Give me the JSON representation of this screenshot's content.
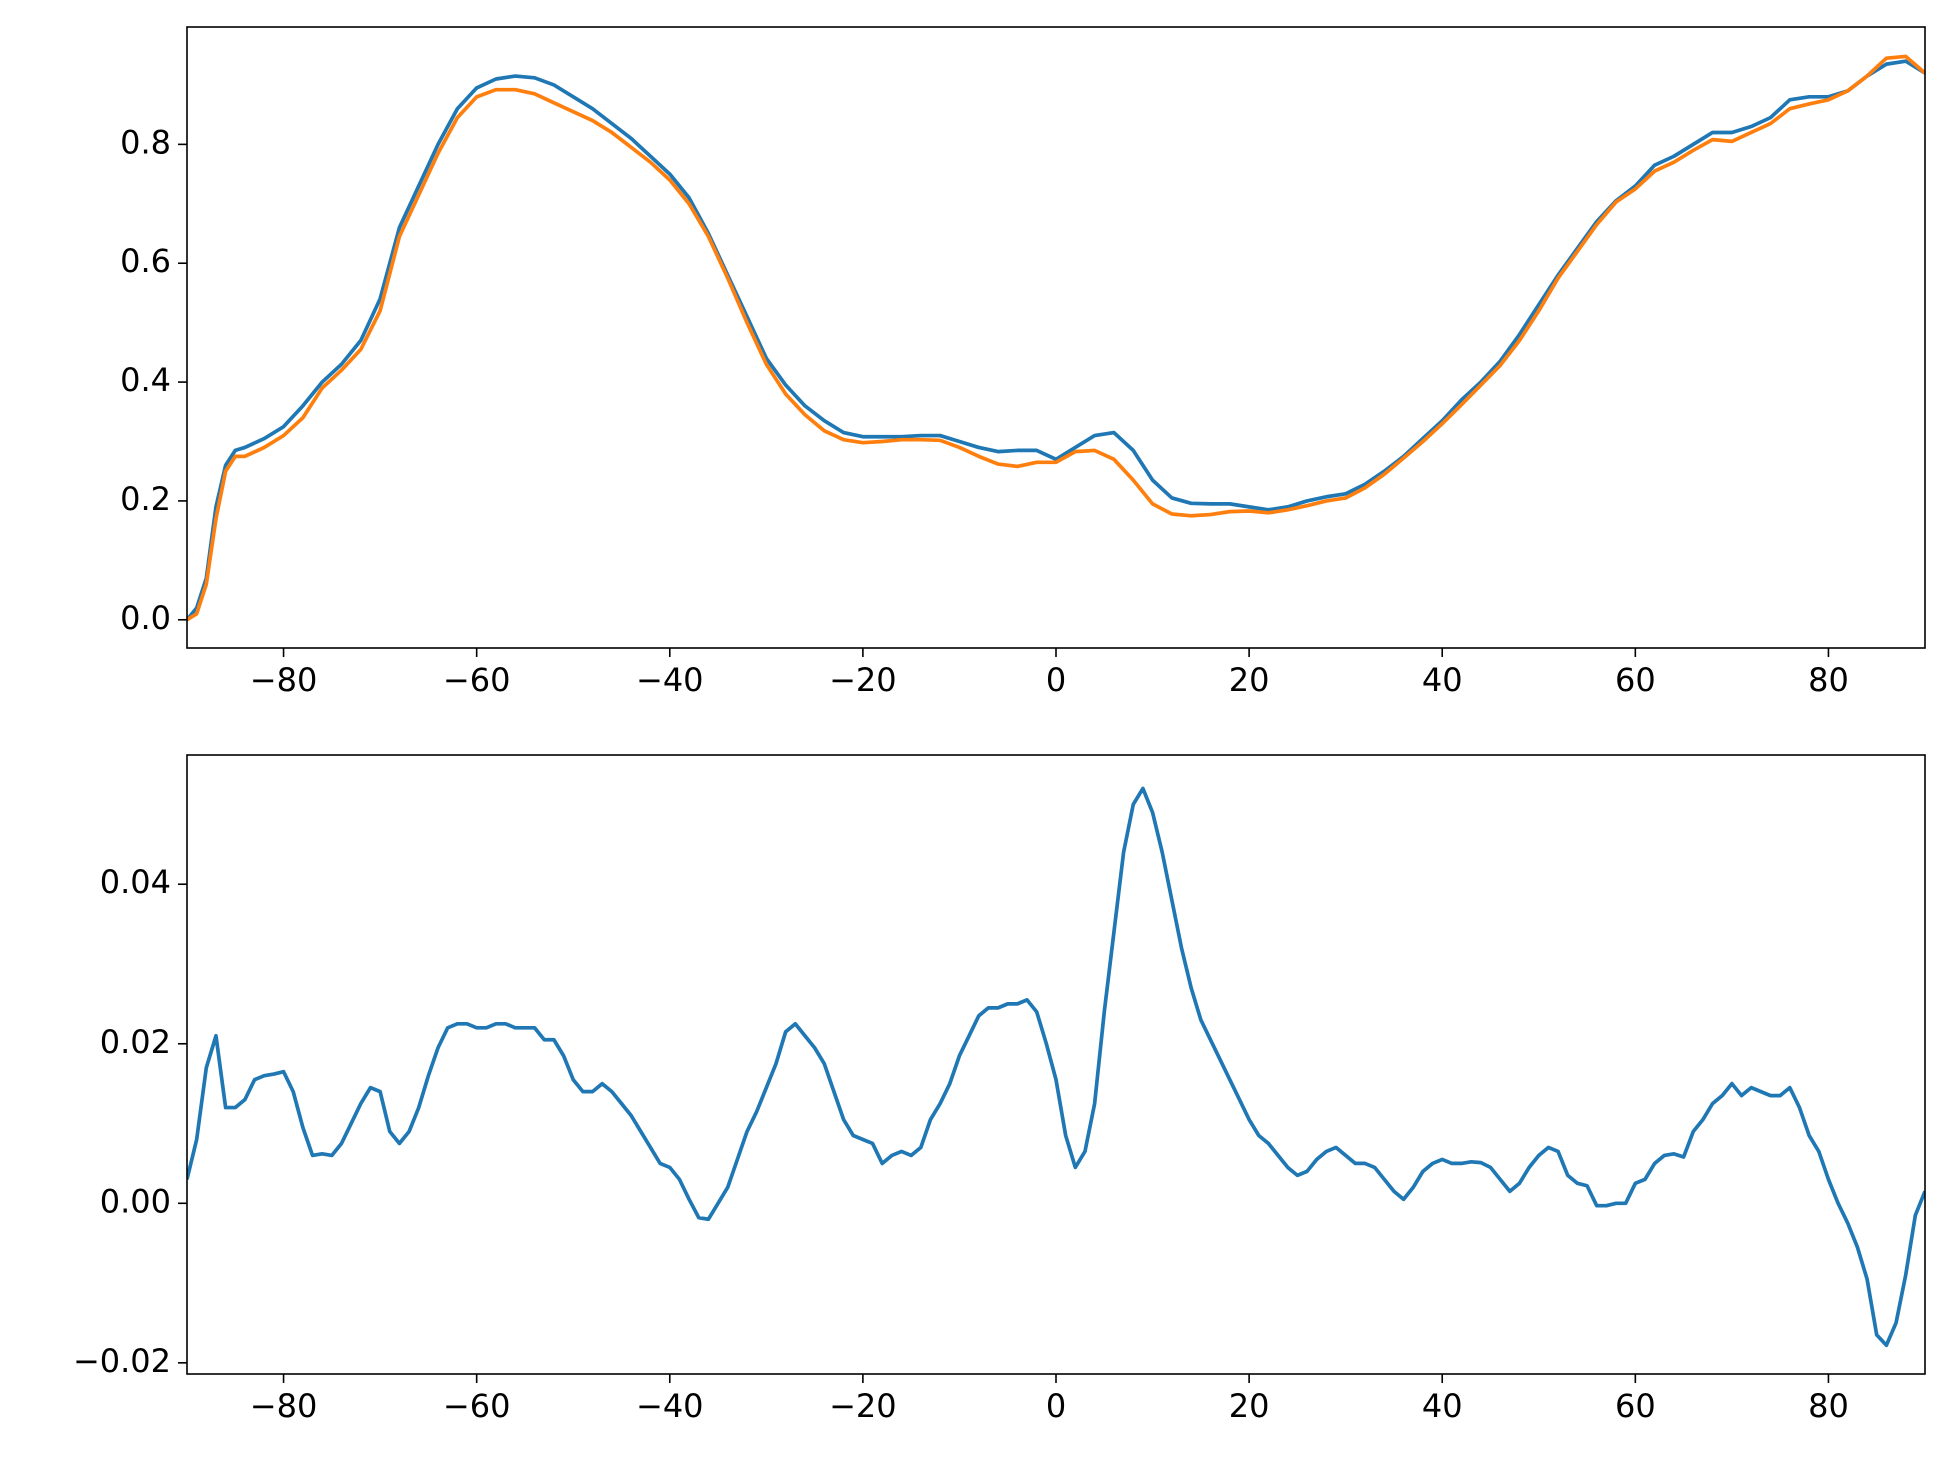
{
  "chart_data": [
    {
      "type": "line",
      "x": [
        -90,
        -89,
        -88,
        -87,
        -86,
        -85,
        -84,
        -82,
        -80,
        -78,
        -76,
        -74,
        -72,
        -70,
        -68,
        -66,
        -64,
        -62,
        -60,
        -58,
        -56,
        -54,
        -52,
        -50,
        -48,
        -46,
        -44,
        -42,
        -40,
        -38,
        -36,
        -34,
        -32,
        -30,
        -28,
        -26,
        -24,
        -22,
        -20,
        -18,
        -16,
        -14,
        -12,
        -10,
        -8,
        -6,
        -4,
        -2,
        0,
        2,
        4,
        6,
        8,
        10,
        12,
        14,
        16,
        18,
        20,
        22,
        24,
        26,
        28,
        30,
        32,
        34,
        36,
        38,
        40,
        42,
        44,
        46,
        48,
        50,
        52,
        54,
        56,
        58,
        60,
        62,
        64,
        66,
        68,
        70,
        72,
        74,
        76,
        78,
        80,
        82,
        84,
        86,
        88,
        90
      ],
      "series": [
        {
          "color": "#1f77b4",
          "values": [
            0.0,
            0.02,
            0.07,
            0.19,
            0.26,
            0.285,
            0.29,
            0.305,
            0.325,
            0.36,
            0.4,
            0.43,
            0.47,
            0.54,
            0.66,
            0.73,
            0.8,
            0.86,
            0.895,
            0.91,
            0.915,
            0.912,
            0.9,
            0.88,
            0.86,
            0.835,
            0.81,
            0.78,
            0.75,
            0.71,
            0.65,
            0.58,
            0.51,
            0.44,
            0.395,
            0.36,
            0.335,
            0.315,
            0.308,
            0.308,
            0.308,
            0.31,
            0.31,
            0.3,
            0.29,
            0.283,
            0.285,
            0.285,
            0.27,
            0.29,
            0.31,
            0.315,
            0.285,
            0.235,
            0.205,
            0.196,
            0.195,
            0.195,
            0.19,
            0.185,
            0.19,
            0.2,
            0.207,
            0.212,
            0.228,
            0.25,
            0.275,
            0.305,
            0.335,
            0.37,
            0.4,
            0.435,
            0.48,
            0.53,
            0.58,
            0.625,
            0.67,
            0.705,
            0.73,
            0.765,
            0.78,
            0.8,
            0.82,
            0.82,
            0.83,
            0.845,
            0.875,
            0.88,
            0.88,
            0.89,
            0.915,
            0.935,
            0.94,
            0.92
          ]
        },
        {
          "color": "#ff7f0e",
          "values": [
            0.0,
            0.01,
            0.06,
            0.17,
            0.25,
            0.275,
            0.275,
            0.29,
            0.31,
            0.34,
            0.39,
            0.42,
            0.455,
            0.52,
            0.645,
            0.715,
            0.785,
            0.845,
            0.88,
            0.892,
            0.892,
            0.885,
            0.87,
            0.855,
            0.84,
            0.82,
            0.795,
            0.77,
            0.74,
            0.7,
            0.645,
            0.575,
            0.5,
            0.43,
            0.38,
            0.345,
            0.318,
            0.303,
            0.298,
            0.3,
            0.303,
            0.303,
            0.302,
            0.29,
            0.275,
            0.262,
            0.258,
            0.265,
            0.265,
            0.283,
            0.285,
            0.27,
            0.235,
            0.195,
            0.178,
            0.175,
            0.177,
            0.182,
            0.183,
            0.18,
            0.185,
            0.192,
            0.2,
            0.205,
            0.222,
            0.245,
            0.272,
            0.3,
            0.33,
            0.362,
            0.395,
            0.428,
            0.47,
            0.52,
            0.575,
            0.62,
            0.665,
            0.703,
            0.725,
            0.755,
            0.77,
            0.79,
            0.808,
            0.805,
            0.82,
            0.835,
            0.86,
            0.868,
            0.875,
            0.89,
            0.915,
            0.945,
            0.948,
            0.92
          ]
        }
      ],
      "xlim": [
        -90,
        90
      ],
      "xticks": [
        {
          "value": -80,
          "label": "−80"
        },
        {
          "value": -60,
          "label": "−60"
        },
        {
          "value": -40,
          "label": "−40"
        },
        {
          "value": -20,
          "label": "−20"
        },
        0,
        20,
        40,
        60,
        80
      ],
      "ylim": [
        -0.0475,
        0.9975
      ],
      "yticks": [
        {
          "value": 0,
          "label": "0.0"
        },
        0.2,
        0.4,
        0.6,
        0.8
      ]
    },
    {
      "type": "line",
      "x": [
        -90,
        -89,
        -88,
        -87,
        -86,
        -85,
        -84,
        -83,
        -82,
        -81,
        -80,
        -79,
        -78,
        -77,
        -76,
        -75,
        -74,
        -73,
        -72,
        -71,
        -70,
        -69,
        -68,
        -67,
        -66,
        -65,
        -64,
        -63,
        -62,
        -61,
        -60,
        -59,
        -58,
        -57,
        -56,
        -55,
        -54,
        -53,
        -52,
        -51,
        -50,
        -49,
        -48,
        -47,
        -46,
        -45,
        -44,
        -43,
        -42,
        -41,
        -40,
        -39,
        -38,
        -37,
        -36,
        -35,
        -34,
        -33,
        -32,
        -31,
        -30,
        -29,
        -28,
        -27,
        -26,
        -25,
        -24,
        -23,
        -22,
        -21,
        -20,
        -19,
        -18,
        -17,
        -16,
        -15,
        -14,
        -13,
        -12,
        -11,
        -10,
        -9,
        -8,
        -7,
        -6,
        -5,
        -4,
        -3,
        -2,
        -1,
        0,
        1,
        2,
        3,
        4,
        5,
        6,
        7,
        8,
        9,
        10,
        11,
        12,
        13,
        14,
        15,
        16,
        17,
        18,
        19,
        20,
        21,
        22,
        23,
        24,
        25,
        26,
        27,
        28,
        29,
        30,
        31,
        32,
        33,
        34,
        35,
        36,
        37,
        38,
        39,
        40,
        41,
        42,
        43,
        44,
        45,
        46,
        47,
        48,
        49,
        50,
        51,
        52,
        53,
        54,
        55,
        56,
        57,
        58,
        59,
        60,
        61,
        62,
        63,
        64,
        65,
        66,
        67,
        68,
        69,
        70,
        71,
        72,
        73,
        74,
        75,
        76,
        77,
        78,
        79,
        80,
        81,
        82,
        83,
        84,
        85,
        86,
        87,
        88,
        89,
        90
      ],
      "series": [
        {
          "color": "#1f77b4",
          "values": [
            0.003,
            0.008,
            0.017,
            0.021,
            0.012,
            0.012,
            0.013,
            0.0155,
            0.016,
            0.0162,
            0.0165,
            0.014,
            0.0095,
            0.006,
            0.0062,
            0.006,
            0.0075,
            0.01,
            0.0125,
            0.0145,
            0.014,
            0.009,
            0.0075,
            0.009,
            0.012,
            0.016,
            0.0195,
            0.022,
            0.0225,
            0.0225,
            0.022,
            0.022,
            0.0225,
            0.0225,
            0.022,
            0.022,
            0.022,
            0.0205,
            0.0205,
            0.0185,
            0.0155,
            0.014,
            0.014,
            0.015,
            0.014,
            0.0125,
            0.011,
            0.009,
            0.007,
            0.005,
            0.0045,
            0.003,
            0.0005,
            -0.0018,
            -0.002,
            0,
            0.002,
            0.0055,
            0.009,
            0.0115,
            0.0145,
            0.0175,
            0.0215,
            0.0225,
            0.021,
            0.0195,
            0.0175,
            0.014,
            0.0105,
            0.0085,
            0.008,
            0.0075,
            0.005,
            0.006,
            0.0065,
            0.006,
            0.007,
            0.0105,
            0.0125,
            0.015,
            0.0185,
            0.021,
            0.0235,
            0.0245,
            0.0245,
            0.025,
            0.025,
            0.0255,
            0.024,
            0.02,
            0.0155,
            0.0085,
            0.0045,
            0.0065,
            0.0125,
            0.024,
            0.034,
            0.044,
            0.05,
            0.052,
            0.049,
            0.044,
            0.038,
            0.032,
            0.027,
            0.023,
            0.0205,
            0.018,
            0.0155,
            0.013,
            0.0105,
            0.0085,
            0.0075,
            0.006,
            0.0045,
            0.0035,
            0.004,
            0.0055,
            0.0065,
            0.007,
            0.006,
            0.005,
            0.005,
            0.0045,
            0.003,
            0.0015,
            0.0005,
            0.002,
            0.004,
            0.005,
            0.0055,
            0.005,
            0.005,
            0.0052,
            0.0051,
            0.0045,
            0.003,
            0.0015,
            0.0025,
            0.0045,
            0.006,
            0.007,
            0.0065,
            0.0035,
            0.0025,
            0.0022,
            -0.0003,
            -0.0003,
            0,
            0,
            0.0025,
            0.003,
            0.005,
            0.006,
            0.0062,
            0.0058,
            0.009,
            0.0105,
            0.0125,
            0.0135,
            0.015,
            0.0135,
            0.0145,
            0.014,
            0.0135,
            0.0135,
            0.0145,
            0.012,
            0.0085,
            0.0065,
            0.003,
            0,
            -0.0025,
            -0.0055,
            -0.0095,
            -0.0165,
            -0.0178,
            -0.015,
            -0.009,
            -0.0015,
            0.0015
          ]
        }
      ],
      "xlim": [
        -90,
        90
      ],
      "xticks": [
        {
          "value": -80,
          "label": "−80"
        },
        {
          "value": -60,
          "label": "−60"
        },
        {
          "value": -40,
          "label": "−40"
        },
        {
          "value": -20,
          "label": "−20"
        },
        0,
        20,
        40,
        60,
        80
      ],
      "ylim": [
        -0.0214,
        0.0562
      ],
      "yticks": [
        {
          "value": -0.02,
          "label": "−0.02"
        },
        {
          "value": 0,
          "label": "0.00"
        },
        0.02,
        0.04
      ]
    }
  ]
}
